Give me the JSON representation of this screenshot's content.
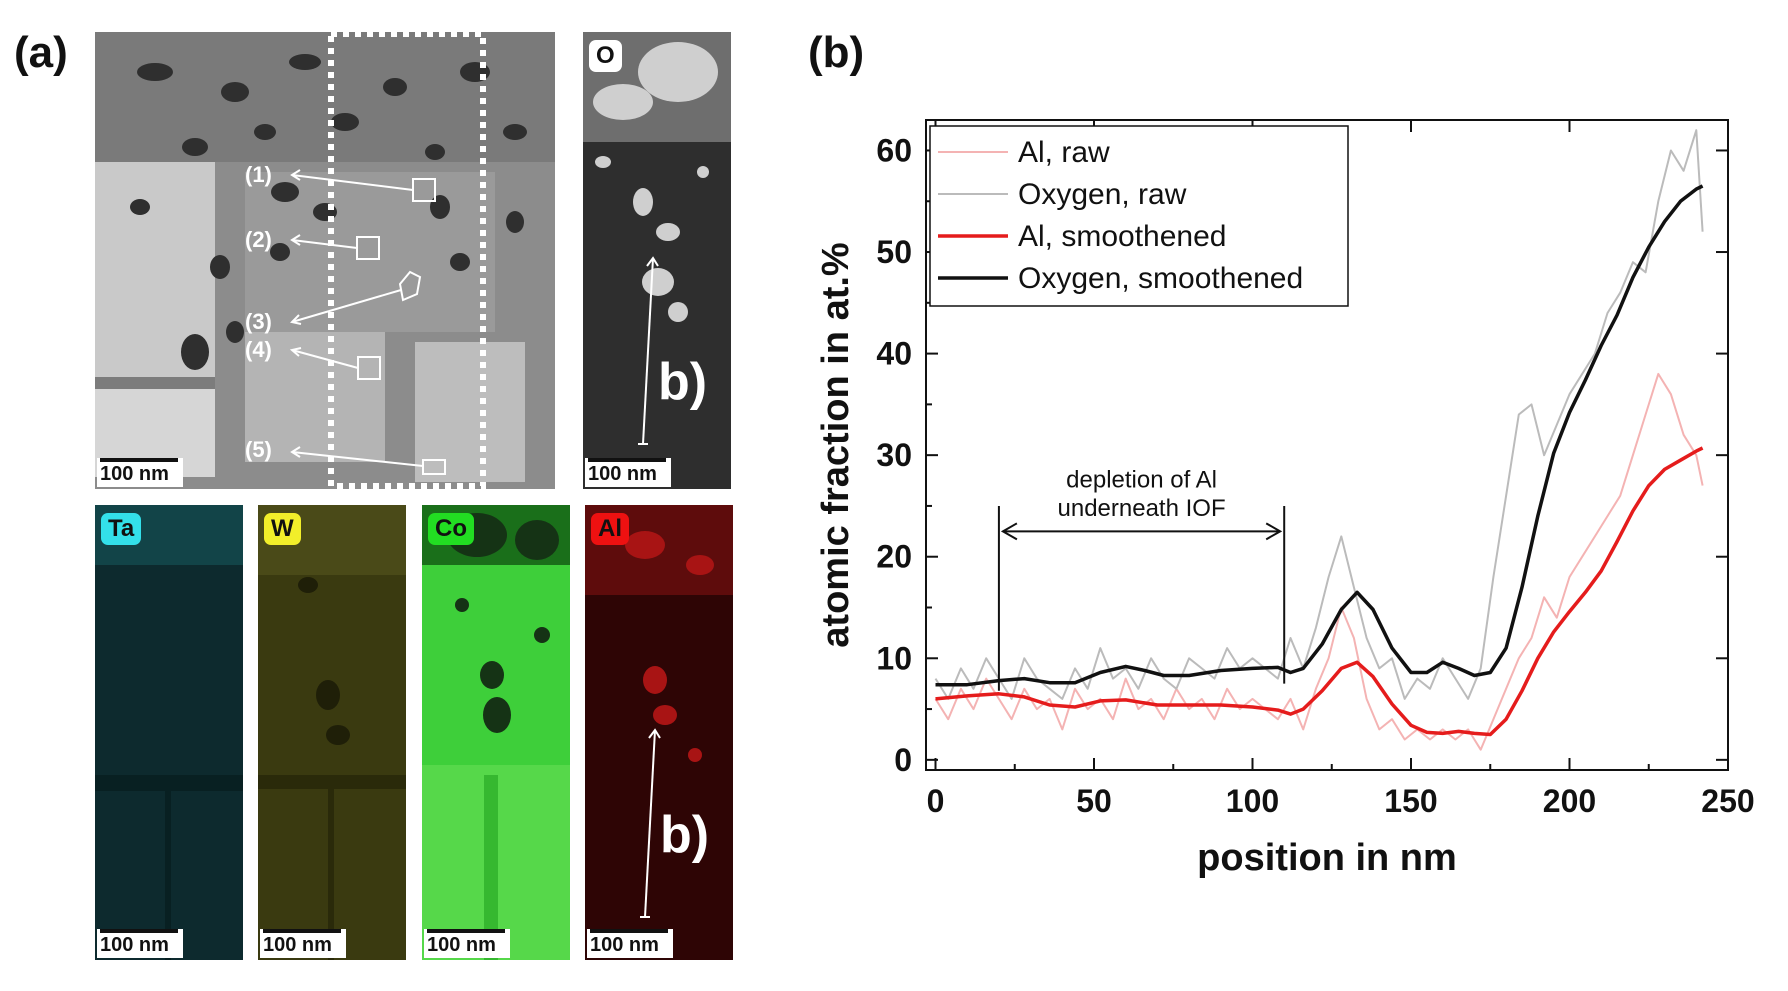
{
  "panel_a_label": "(a)",
  "panel_b_label": "(b)",
  "tem": {
    "scale": "100 nm",
    "regions": [
      "(1)",
      "(2)",
      "(3)",
      "(4)",
      "(5)"
    ]
  },
  "maps": [
    {
      "tag": "O",
      "tag_color": "#ffffff",
      "scale": "100 nm",
      "line_label": "b)"
    },
    {
      "tag": "Ta",
      "tag_color": "#33e0ea",
      "scale": "100 nm"
    },
    {
      "tag": "W",
      "tag_color": "#f2ee2a",
      "scale": "100 nm"
    },
    {
      "tag": "Co",
      "tag_color": "#22dd22",
      "scale": "100 nm"
    },
    {
      "tag": "Al",
      "tag_color": "#ee1111",
      "scale": "100 nm",
      "line_label": "b)"
    }
  ],
  "chart_data": {
    "type": "line",
    "xlabel": "position in nm",
    "ylabel": "atomic fraction in at.%",
    "xlim": [
      -3,
      250
    ],
    "ylim": [
      -1,
      63
    ],
    "xticks": [
      0,
      50,
      100,
      150,
      200,
      250
    ],
    "yticks": [
      0,
      10,
      20,
      30,
      40,
      50,
      60
    ],
    "legend_position": "top-left",
    "annotation": {
      "text_line1": "depletion of Al",
      "text_line2": "underneath IOF",
      "x_from": 20,
      "x_to": 110
    },
    "series": [
      {
        "name": "Al, raw",
        "color": "#f4b3b3",
        "width": 2,
        "x": [
          0,
          4,
          8,
          12,
          16,
          20,
          24,
          28,
          32,
          36,
          40,
          44,
          48,
          52,
          56,
          60,
          64,
          68,
          72,
          76,
          80,
          84,
          88,
          92,
          96,
          100,
          104,
          108,
          112,
          116,
          120,
          124,
          128,
          132,
          136,
          140,
          144,
          148,
          152,
          156,
          160,
          164,
          168,
          172,
          176,
          180,
          184,
          188,
          192,
          196,
          200,
          204,
          208,
          212,
          216,
          220,
          224,
          228,
          232,
          236,
          240,
          242
        ],
        "y": [
          6,
          4,
          7,
          5,
          8,
          6,
          4,
          7,
          5,
          6,
          3,
          7,
          5,
          6,
          4,
          8,
          5,
          6,
          4,
          7,
          5,
          6,
          4,
          7,
          5,
          6,
          5,
          4,
          6,
          3,
          7,
          10,
          15,
          12,
          6,
          3,
          4,
          2,
          3,
          2,
          3,
          2,
          3,
          1,
          4,
          7,
          10,
          12,
          16,
          14,
          18,
          20,
          22,
          24,
          26,
          30,
          34,
          38,
          36,
          32,
          30,
          27
        ]
      },
      {
        "name": "Oxygen, raw",
        "color": "#bbbbbb",
        "width": 2,
        "x": [
          0,
          4,
          8,
          12,
          16,
          20,
          24,
          28,
          32,
          36,
          40,
          44,
          48,
          52,
          56,
          60,
          64,
          68,
          72,
          76,
          80,
          84,
          88,
          92,
          96,
          100,
          104,
          108,
          112,
          116,
          120,
          124,
          128,
          132,
          136,
          140,
          144,
          148,
          152,
          156,
          160,
          164,
          168,
          172,
          176,
          180,
          184,
          188,
          192,
          196,
          200,
          204,
          208,
          212,
          216,
          220,
          224,
          228,
          232,
          236,
          240,
          242
        ],
        "y": [
          8,
          6,
          9,
          7,
          10,
          8,
          6,
          10,
          8,
          7,
          6,
          9,
          7,
          11,
          8,
          9,
          7,
          10,
          8,
          7,
          10,
          9,
          8,
          11,
          9,
          10,
          9,
          8,
          12,
          9,
          13,
          18,
          22,
          17,
          12,
          9,
          10,
          6,
          8,
          7,
          10,
          8,
          6,
          9,
          18,
          26,
          34,
          35,
          30,
          33,
          36,
          38,
          40,
          44,
          46,
          49,
          48,
          55,
          60,
          58,
          62,
          52
        ]
      },
      {
        "name": "Al, smoothened",
        "color": "#e51c1c",
        "width": 3.5,
        "x": [
          0,
          10,
          20,
          28,
          36,
          44,
          52,
          60,
          70,
          80,
          90,
          100,
          108,
          112,
          116,
          122,
          128,
          133,
          138,
          144,
          150,
          155,
          160,
          165,
          170,
          175,
          180,
          185,
          190,
          195,
          200,
          205,
          210,
          215,
          220,
          225,
          230,
          235,
          240,
          242
        ],
        "y": [
          6,
          6.3,
          6.5,
          6.2,
          5.4,
          5.2,
          5.8,
          5.9,
          5.4,
          5.4,
          5.4,
          5.2,
          4.9,
          4.5,
          5.0,
          6.8,
          9.0,
          9.6,
          8.2,
          5.5,
          3.4,
          2.7,
          2.6,
          2.8,
          2.6,
          2.5,
          4.0,
          6.8,
          10.0,
          12.6,
          14.6,
          16.5,
          18.6,
          21.5,
          24.5,
          27.0,
          28.6,
          29.5,
          30.4,
          30.7
        ]
      },
      {
        "name": "Oxygen, smoothened",
        "color": "#111111",
        "width": 3.5,
        "x": [
          0,
          10,
          20,
          28,
          36,
          44,
          52,
          60,
          66,
          72,
          80,
          90,
          100,
          108,
          112,
          116,
          122,
          128,
          133,
          138,
          144,
          150,
          155,
          160,
          165,
          170,
          175,
          180,
          185,
          190,
          195,
          200,
          205,
          210,
          215,
          220,
          225,
          230,
          235,
          240,
          242
        ],
        "y": [
          7.4,
          7.4,
          7.8,
          8.0,
          7.6,
          7.6,
          8.6,
          9.2,
          8.8,
          8.3,
          8.3,
          8.8,
          9.0,
          9.1,
          8.6,
          9.0,
          11.4,
          14.8,
          16.5,
          14.8,
          11.0,
          8.6,
          8.6,
          9.6,
          9.0,
          8.3,
          8.6,
          11.0,
          17.0,
          24.0,
          30.2,
          34.2,
          37.4,
          40.8,
          43.8,
          47.5,
          50.5,
          53.0,
          55.0,
          56.2,
          56.5
        ]
      }
    ]
  }
}
